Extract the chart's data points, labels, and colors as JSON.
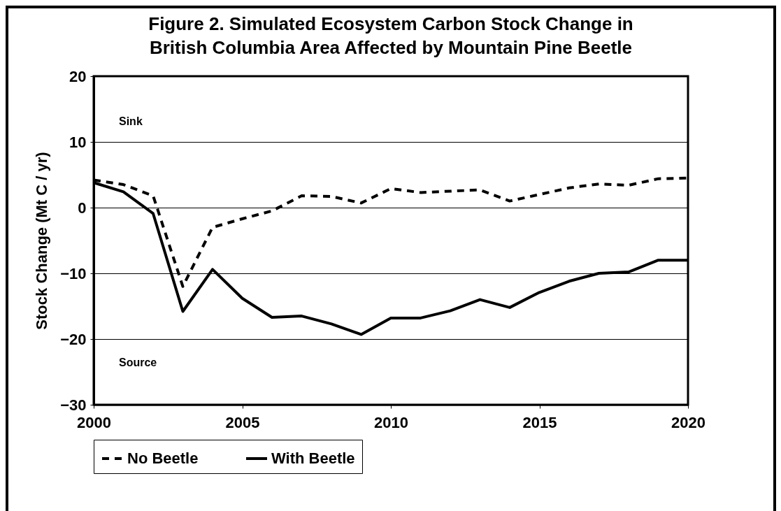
{
  "chart_data": {
    "type": "line",
    "title": [
      "Figure 2. Simulated Ecosystem Carbon Stock Change in",
      "British Columbia Area Affected by Mountain Pine Beetle"
    ],
    "ylabel": "Stock Change (Mt C / yr)",
    "annotations": [
      "Sink",
      "Source"
    ],
    "x": [
      2000,
      2001,
      2002,
      2003,
      2004,
      2005,
      2006,
      2007,
      2008,
      2009,
      2010,
      2011,
      2012,
      2013,
      2014,
      2015,
      2016,
      2017,
      2018,
      2019,
      2020
    ],
    "series": [
      {
        "name": "No Beetle",
        "color": "#000000",
        "line_style": "dashed",
        "values": [
          4.2,
          3.5,
          1.8,
          -12,
          -3,
          -1.7,
          -0.5,
          1.8,
          1.7,
          0.7,
          2.9,
          2.3,
          2.5,
          2.7,
          1.0,
          2.0,
          3.0,
          3.6,
          3.4,
          4.4,
          4.5
        ]
      },
      {
        "name": "With Beetle",
        "color": "#000000",
        "line_style": "solid",
        "values": [
          3.8,
          2.4,
          -0.9,
          -15.8,
          -9.4,
          -13.8,
          -16.7,
          -16.5,
          -17.7,
          -19.3,
          -16.8,
          -16.8,
          -15.7,
          -14.0,
          -15.2,
          -12.9,
          -11.2,
          -10.0,
          -9.8,
          -8.0,
          -8.0
        ]
      }
    ],
    "xlim": [
      2000,
      2020
    ],
    "xticks": [
      2000,
      2005,
      2010,
      2015,
      2020
    ],
    "ylim": [
      -30,
      20
    ],
    "yticks": [
      -30,
      -20,
      -10,
      0,
      10,
      20
    ],
    "grid": "y",
    "legend": "bottom",
    "marker": "none"
  }
}
